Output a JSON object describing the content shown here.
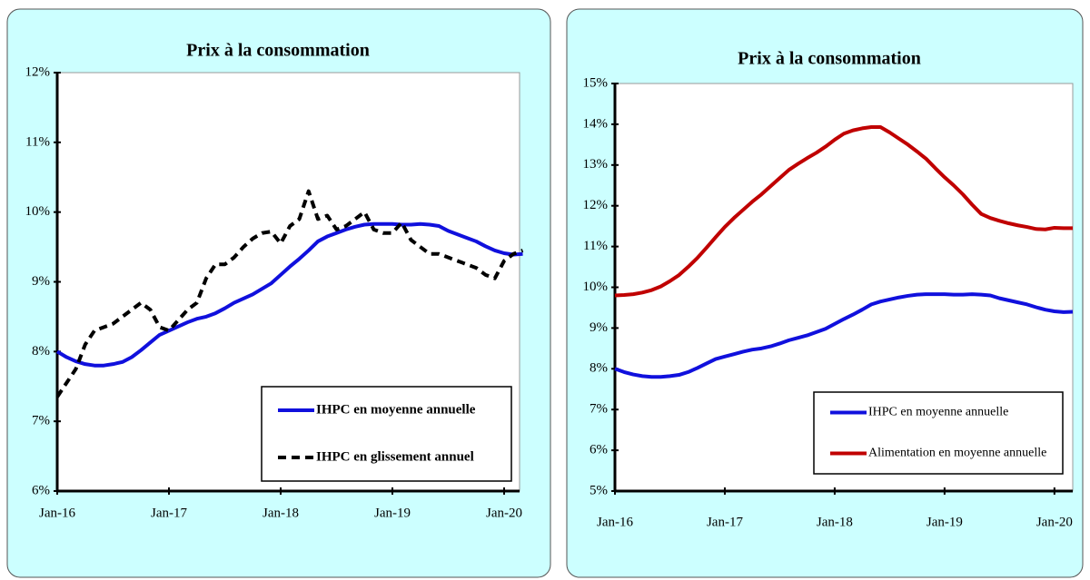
{
  "chart_data": [
    {
      "type": "line",
      "title": "Prix à la consommation",
      "categories": [
        "Jan-16",
        null,
        null,
        null,
        null,
        null,
        null,
        null,
        null,
        null,
        null,
        null,
        "Jan-17",
        null,
        null,
        null,
        null,
        null,
        null,
        null,
        null,
        null,
        null,
        null,
        "Jan-18",
        null,
        null,
        null,
        null,
        null,
        null,
        null,
        null,
        null,
        null,
        null,
        "Jan-19",
        null,
        null,
        null,
        null,
        null,
        null,
        null,
        null,
        null,
        null,
        null,
        "Jan-20",
        null,
        null
      ],
      "series": [
        {
          "name": "IHPC en moyenne annuelle",
          "color": "#1010dd",
          "style": "solid",
          "values": [
            8.0,
            7.92,
            7.86,
            7.82,
            7.8,
            7.8,
            7.82,
            7.85,
            7.92,
            8.02,
            8.13,
            8.24,
            8.3,
            8.36,
            8.42,
            8.47,
            8.5,
            8.55,
            8.62,
            8.7,
            8.76,
            8.82,
            8.9,
            8.98,
            9.1,
            9.22,
            9.33,
            9.45,
            9.58,
            9.65,
            9.7,
            9.75,
            9.79,
            9.82,
            9.83,
            9.83,
            9.83,
            9.82,
            9.82,
            9.83,
            9.82,
            9.8,
            9.73,
            9.68,
            9.63,
            9.58,
            9.51,
            9.45,
            9.41,
            9.39,
            9.4
          ]
        },
        {
          "name": "IHPC en glissement annuel",
          "color": "#000000",
          "style": "dashed",
          "values": [
            7.35,
            7.55,
            7.75,
            8.1,
            8.3,
            8.35,
            8.4,
            8.5,
            8.6,
            8.7,
            8.6,
            8.35,
            8.3,
            8.45,
            8.6,
            8.7,
            9.05,
            9.25,
            9.25,
            9.35,
            9.5,
            9.62,
            9.7,
            9.72,
            9.55,
            9.8,
            9.9,
            10.3,
            9.9,
            9.95,
            9.75,
            9.8,
            9.9,
            10.0,
            9.75,
            9.7,
            9.7,
            9.85,
            9.6,
            9.5,
            9.4,
            9.4,
            9.35,
            9.3,
            9.25,
            9.2,
            9.1,
            9.05,
            9.3,
            9.4,
            9.45
          ]
        }
      ],
      "ylim": [
        6,
        12
      ],
      "yticks": [
        {
          "value": 6,
          "label": "6%"
        },
        {
          "value": 7,
          "label": "7%"
        },
        {
          "value": 8,
          "label": "8%"
        },
        {
          "value": 9,
          "label": "9%"
        },
        {
          "value": 10,
          "label": "10%"
        },
        {
          "value": 11,
          "label": "11%"
        },
        {
          "value": 12,
          "label": "12%"
        }
      ]
    },
    {
      "type": "line",
      "title": "Prix à la consommation",
      "categories": [
        "Jan-16",
        null,
        null,
        null,
        null,
        null,
        null,
        null,
        null,
        null,
        null,
        null,
        "Jan-17",
        null,
        null,
        null,
        null,
        null,
        null,
        null,
        null,
        null,
        null,
        null,
        "Jan-18",
        null,
        null,
        null,
        null,
        null,
        null,
        null,
        null,
        null,
        null,
        null,
        "Jan-19",
        null,
        null,
        null,
        null,
        null,
        null,
        null,
        null,
        null,
        null,
        null,
        "Jan-20",
        null,
        null
      ],
      "series": [
        {
          "name": "IHPC en moyenne annuelle",
          "color": "#1010dd",
          "style": "solid",
          "values": [
            8.0,
            7.92,
            7.86,
            7.82,
            7.8,
            7.8,
            7.82,
            7.85,
            7.92,
            8.02,
            8.13,
            8.24,
            8.3,
            8.36,
            8.42,
            8.47,
            8.5,
            8.55,
            8.62,
            8.7,
            8.76,
            8.82,
            8.9,
            8.98,
            9.1,
            9.22,
            9.33,
            9.45,
            9.58,
            9.65,
            9.7,
            9.75,
            9.79,
            9.82,
            9.83,
            9.83,
            9.83,
            9.82,
            9.82,
            9.83,
            9.82,
            9.8,
            9.73,
            9.68,
            9.63,
            9.58,
            9.51,
            9.45,
            9.41,
            9.39,
            9.4
          ]
        },
        {
          "name": "Alimentation en moyenne annuelle",
          "color": "#c00000",
          "style": "solid",
          "values": [
            9.8,
            9.81,
            9.83,
            9.87,
            9.93,
            10.02,
            10.15,
            10.3,
            10.5,
            10.72,
            10.97,
            11.23,
            11.48,
            11.7,
            11.9,
            12.1,
            12.28,
            12.48,
            12.68,
            12.88,
            13.03,
            13.17,
            13.3,
            13.45,
            13.62,
            13.77,
            13.85,
            13.9,
            13.93,
            13.93,
            13.8,
            13.65,
            13.5,
            13.33,
            13.15,
            12.92,
            12.7,
            12.5,
            12.28,
            12.03,
            11.8,
            11.7,
            11.63,
            11.57,
            11.52,
            11.48,
            11.43,
            11.42,
            11.46,
            11.45,
            11.45
          ]
        }
      ],
      "ylim": [
        5,
        15
      ],
      "yticks": [
        {
          "value": 5,
          "label": "5%"
        },
        {
          "value": 6,
          "label": "6%"
        },
        {
          "value": 7,
          "label": "7%"
        },
        {
          "value": 8,
          "label": "8%"
        },
        {
          "value": 9,
          "label": "9%"
        },
        {
          "value": 10,
          "label": "10%"
        },
        {
          "value": 11,
          "label": "11%"
        },
        {
          "value": 12,
          "label": "12%"
        },
        {
          "value": 13,
          "label": "13%"
        },
        {
          "value": 14,
          "label": "14%"
        },
        {
          "value": 15,
          "label": "15%"
        }
      ]
    }
  ]
}
